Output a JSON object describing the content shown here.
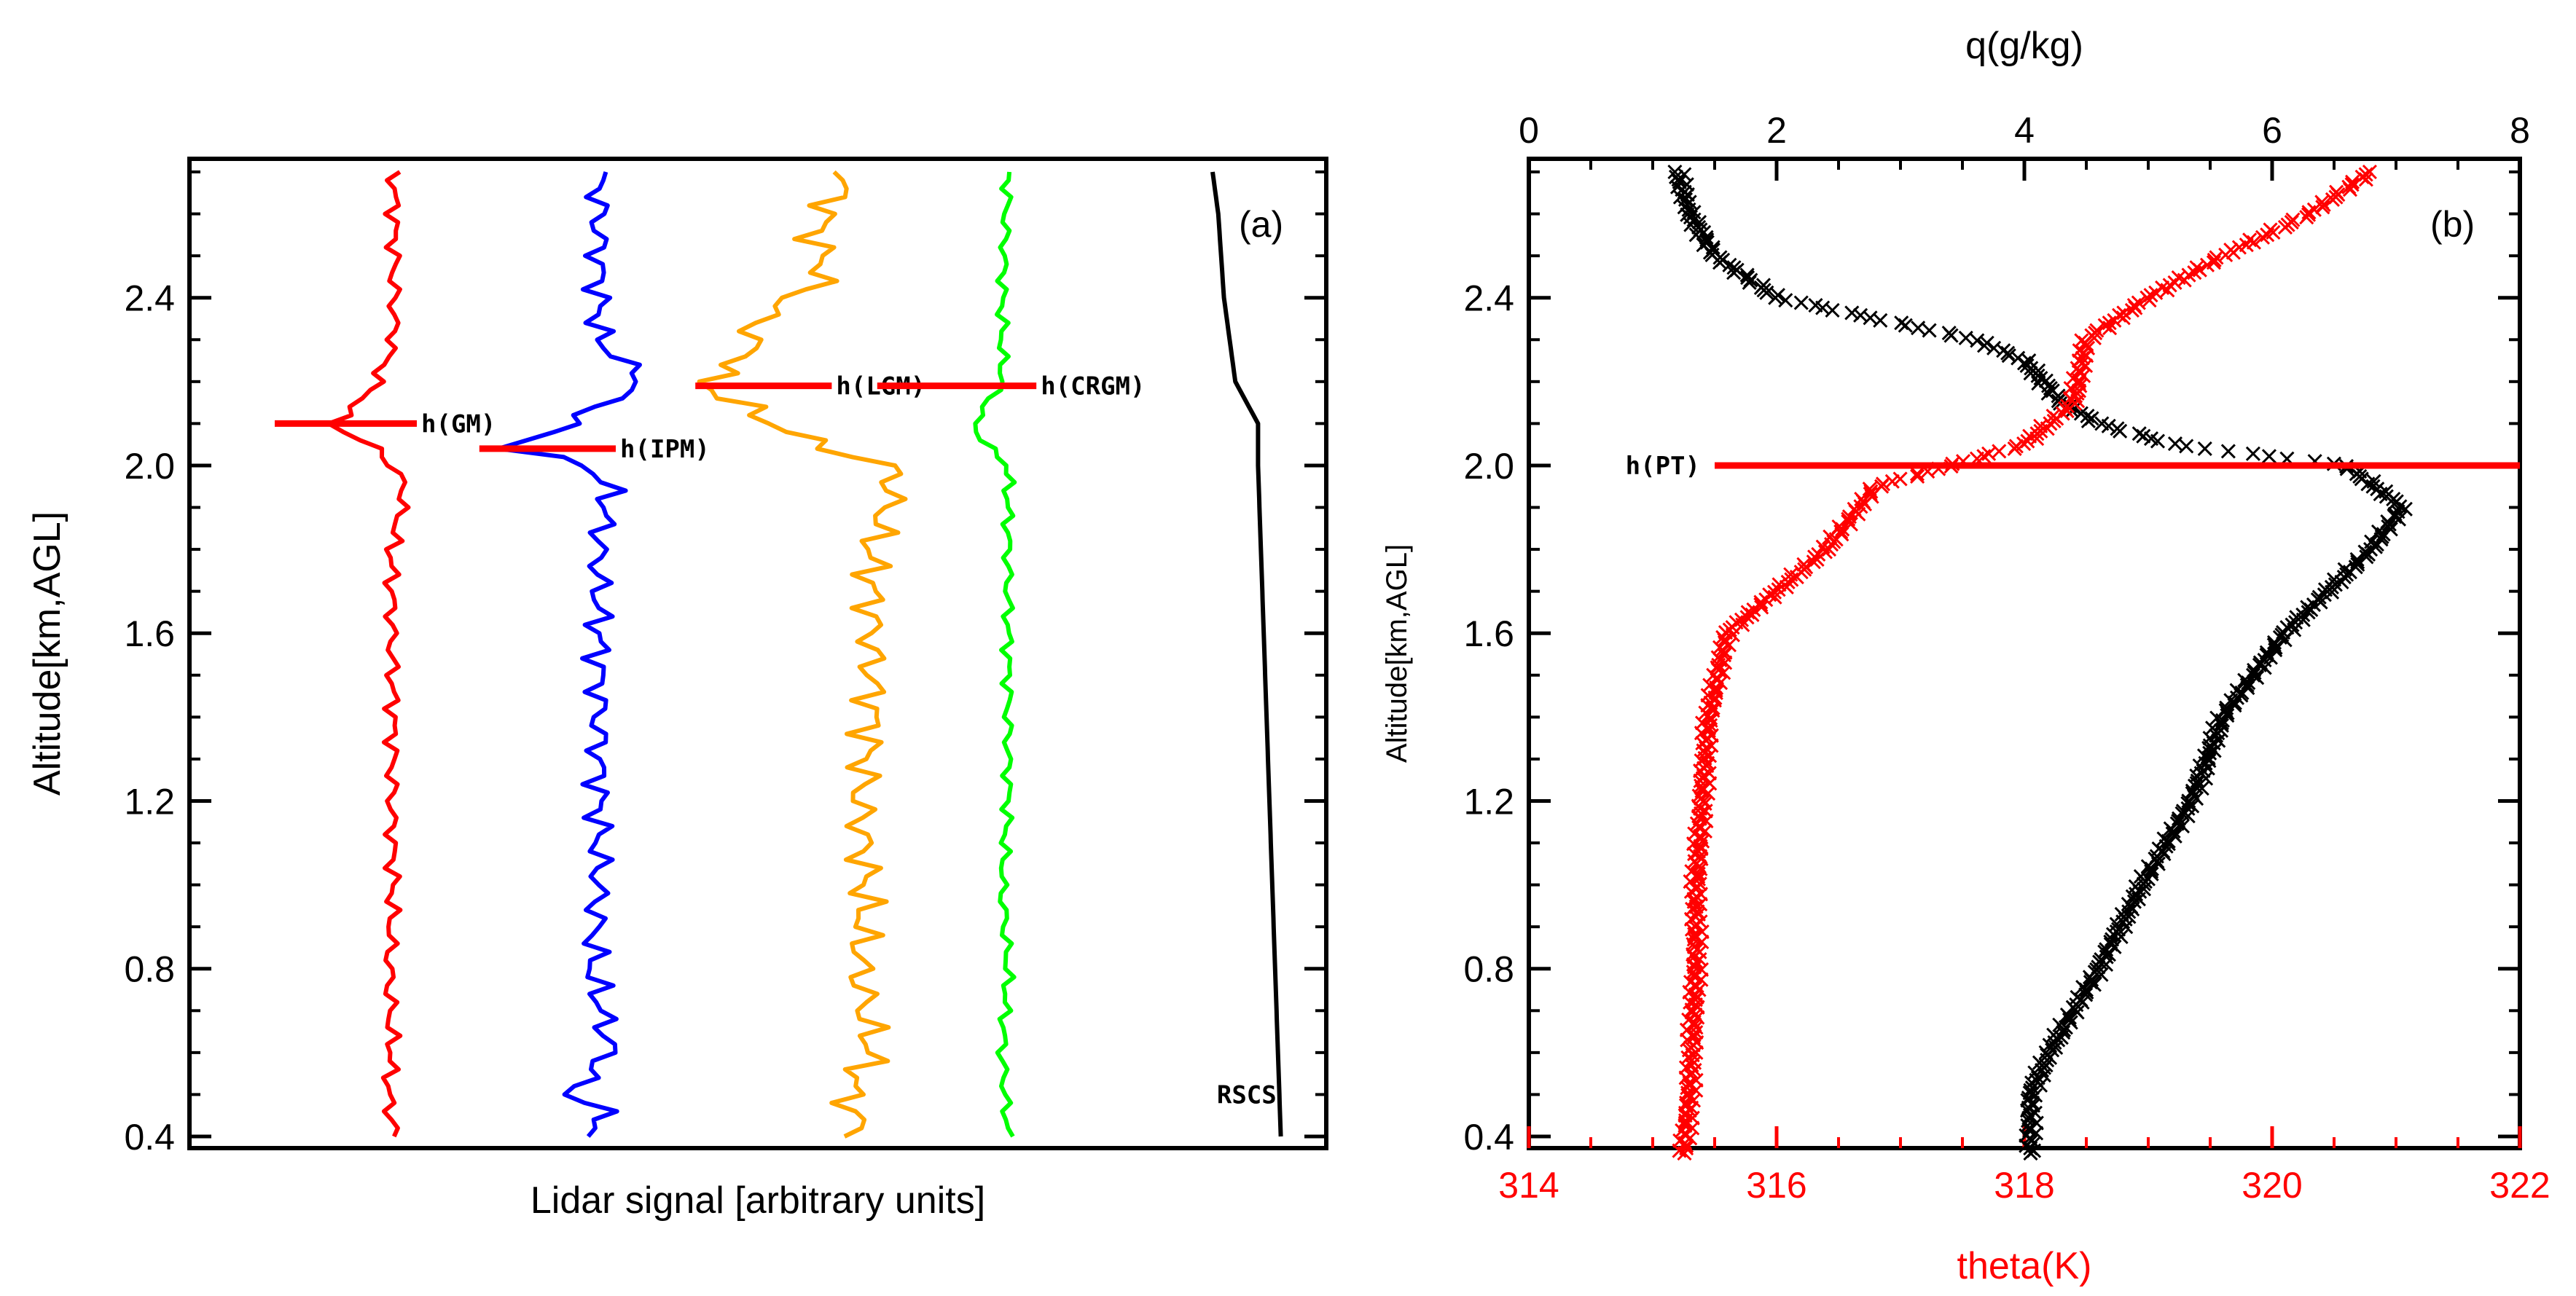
{
  "chart_data": [
    {
      "type": "line",
      "panel": "(a)",
      "xlabel": "Lidar signal [arbitrary units]",
      "ylabel": "Altitude[km,AGL]",
      "ylim": [
        0.4,
        2.7
      ],
      "yticks": [
        0.4,
        0.8,
        1.2,
        1.6,
        2.0,
        2.4
      ],
      "ytick_labels": [
        "0.4",
        "0.8",
        "1.2",
        "1.6",
        "2.0",
        "2.4"
      ],
      "series": [
        {
          "name": "GM",
          "color": "#ff0000",
          "center": 0.175,
          "amp": 0.008,
          "points": [
            [
              0.4,
              0.18
            ],
            [
              0.5,
              0.175
            ],
            [
              0.6,
              0.178
            ],
            [
              0.8,
              0.176
            ],
            [
              1.0,
              0.179
            ],
            [
              1.2,
              0.178
            ],
            [
              1.4,
              0.179
            ],
            [
              1.6,
              0.178
            ],
            [
              1.8,
              0.178
            ],
            [
              1.95,
              0.19
            ],
            [
              2.03,
              0.17
            ],
            [
              2.1,
              0.125
            ],
            [
              2.15,
              0.15
            ],
            [
              2.18,
              0.16
            ],
            [
              2.23,
              0.17
            ],
            [
              2.3,
              0.18
            ],
            [
              2.45,
              0.18
            ],
            [
              2.6,
              0.18
            ],
            [
              2.7,
              0.18
            ]
          ]
        },
        {
          "name": "IPM",
          "color": "#0000ff",
          "center": 0.36,
          "amp": 0.015,
          "points": [
            [
              0.4,
              0.35
            ],
            [
              0.45,
              0.37
            ],
            [
              0.5,
              0.335
            ],
            [
              0.6,
              0.37
            ],
            [
              0.8,
              0.355
            ],
            [
              1.0,
              0.36
            ],
            [
              1.2,
              0.36
            ],
            [
              1.4,
              0.36
            ],
            [
              1.6,
              0.36
            ],
            [
              1.8,
              0.36
            ],
            [
              1.95,
              0.37
            ],
            [
              2.0,
              0.35
            ],
            [
              2.04,
              0.28
            ],
            [
              2.08,
              0.32
            ],
            [
              2.14,
              0.36
            ],
            [
              2.2,
              0.4
            ],
            [
              2.3,
              0.36
            ],
            [
              2.5,
              0.36
            ],
            [
              2.7,
              0.36
            ]
          ]
        },
        {
          "name": "LGM",
          "color": "#ffa500",
          "center": 0.59,
          "amp": 0.02,
          "points": [
            [
              0.4,
              0.59
            ],
            [
              0.5,
              0.58
            ],
            [
              0.6,
              0.6
            ],
            [
              0.8,
              0.59
            ],
            [
              1.0,
              0.595
            ],
            [
              1.2,
              0.59
            ],
            [
              1.4,
              0.6
            ],
            [
              1.6,
              0.6
            ],
            [
              1.8,
              0.6
            ],
            [
              1.95,
              0.62
            ],
            [
              2.0,
              0.615
            ],
            [
              2.05,
              0.55
            ],
            [
              2.12,
              0.5
            ],
            [
              2.2,
              0.45
            ],
            [
              2.25,
              0.49
            ],
            [
              2.35,
              0.5
            ],
            [
              2.45,
              0.56
            ],
            [
              2.55,
              0.55
            ],
            [
              2.65,
              0.57
            ],
            [
              2.7,
              0.58
            ]
          ]
        },
        {
          "name": "CRGM",
          "color": "#00ff00",
          "center": 0.72,
          "amp": 0.006,
          "points": [
            [
              0.4,
              0.72
            ],
            [
              0.6,
              0.715
            ],
            [
              0.8,
              0.72
            ],
            [
              1.0,
              0.715
            ],
            [
              1.2,
              0.72
            ],
            [
              1.4,
              0.72
            ],
            [
              1.6,
              0.72
            ],
            [
              1.8,
              0.72
            ],
            [
              2.0,
              0.72
            ],
            [
              2.05,
              0.7
            ],
            [
              2.1,
              0.69
            ],
            [
              2.2,
              0.715
            ],
            [
              2.4,
              0.715
            ],
            [
              2.7,
              0.72
            ]
          ]
        },
        {
          "name": "RSCS",
          "color": "#000000",
          "center": 0.9,
          "amp": 0.0,
          "points": [
            [
              0.4,
              0.96
            ],
            [
              0.8,
              0.955
            ],
            [
              1.2,
              0.95
            ],
            [
              1.6,
              0.945
            ],
            [
              2.0,
              0.94
            ],
            [
              2.1,
              0.94
            ],
            [
              2.2,
              0.92
            ],
            [
              2.4,
              0.91
            ],
            [
              2.6,
              0.905
            ],
            [
              2.7,
              0.9
            ]
          ]
        }
      ],
      "annotations": [
        {
          "text": "h(GM)",
          "y": 2.1,
          "x0": 0.075,
          "x1": 0.2,
          "color": "#ff0000"
        },
        {
          "text": "h(IPM)",
          "y": 2.04,
          "x0": 0.255,
          "x1": 0.375,
          "color": "#ff0000"
        },
        {
          "text": "h(LGM)",
          "y": 2.19,
          "x0": 0.445,
          "x1": 0.565,
          "color": "#ff0000"
        },
        {
          "text": "h(CRGM)",
          "y": 2.19,
          "x0": 0.605,
          "x1": 0.745,
          "color": "#ff0000"
        },
        {
          "text": "RSCS",
          "y": 0.5,
          "color": "#000000"
        }
      ]
    },
    {
      "type": "scatter",
      "panel": "(b)",
      "ylabel": "Altitude[km,AGL]",
      "ylim": [
        0.4,
        2.7
      ],
      "yticks": [
        0.4,
        0.8,
        1.2,
        1.6,
        2.0,
        2.4
      ],
      "ytick_labels": [
        "0.4",
        "0.8",
        "1.2",
        "1.6",
        "2.0",
        "2.4"
      ],
      "top_axis": {
        "label": "q(g/kg)",
        "range": [
          0,
          8
        ],
        "ticks": [
          0,
          2,
          4,
          6,
          8
        ],
        "tick_labels": [
          "0",
          "2",
          "4",
          "6",
          "8"
        ],
        "color": "#000000"
      },
      "bottom_axis": {
        "label": "theta(K)",
        "range": [
          314,
          322
        ],
        "ticks": [
          314,
          316,
          318,
          320,
          322
        ],
        "tick_labels": [
          "314",
          "316",
          "318",
          "320",
          "322"
        ],
        "color": "#ff0000"
      },
      "series": [
        {
          "name": "q",
          "color": "#000000",
          "axis": "top",
          "profile": [
            [
              0.36,
              4.05
            ],
            [
              0.5,
              4.05
            ],
            [
              0.6,
              4.2
            ],
            [
              0.8,
              4.6
            ],
            [
              1.0,
              4.95
            ],
            [
              1.2,
              5.35
            ],
            [
              1.4,
              5.6
            ],
            [
              1.6,
              6.1
            ],
            [
              1.8,
              6.8
            ],
            [
              1.9,
              7.05
            ],
            [
              2.0,
              6.6
            ],
            [
              2.05,
              5.2
            ],
            [
              2.1,
              4.6
            ],
            [
              2.15,
              4.3
            ],
            [
              2.25,
              4.0
            ],
            [
              2.3,
              3.6
            ],
            [
              2.35,
              2.8
            ],
            [
              2.4,
              2.0
            ],
            [
              2.5,
              1.5
            ],
            [
              2.6,
              1.3
            ],
            [
              2.7,
              1.2
            ]
          ]
        },
        {
          "name": "theta",
          "color": "#ff0000",
          "axis": "bottom",
          "profile": [
            [
              0.36,
              315.25
            ],
            [
              0.5,
              315.3
            ],
            [
              0.8,
              315.35
            ],
            [
              1.0,
              315.35
            ],
            [
              1.2,
              315.4
            ],
            [
              1.4,
              315.45
            ],
            [
              1.6,
              315.6
            ],
            [
              1.7,
              316.0
            ],
            [
              1.8,
              316.4
            ],
            [
              1.95,
              316.8
            ],
            [
              2.0,
              317.4
            ],
            [
              2.05,
              318.0
            ],
            [
              2.15,
              318.4
            ],
            [
              2.3,
              318.5
            ],
            [
              2.4,
              319.0
            ],
            [
              2.5,
              319.6
            ],
            [
              2.6,
              320.3
            ],
            [
              2.7,
              320.8
            ]
          ]
        }
      ],
      "annotations": [
        {
          "text": "h(PT)",
          "y": 2.0,
          "q_from": 1.5,
          "q_to": 8.0,
          "color": "#ff0000"
        }
      ]
    }
  ]
}
